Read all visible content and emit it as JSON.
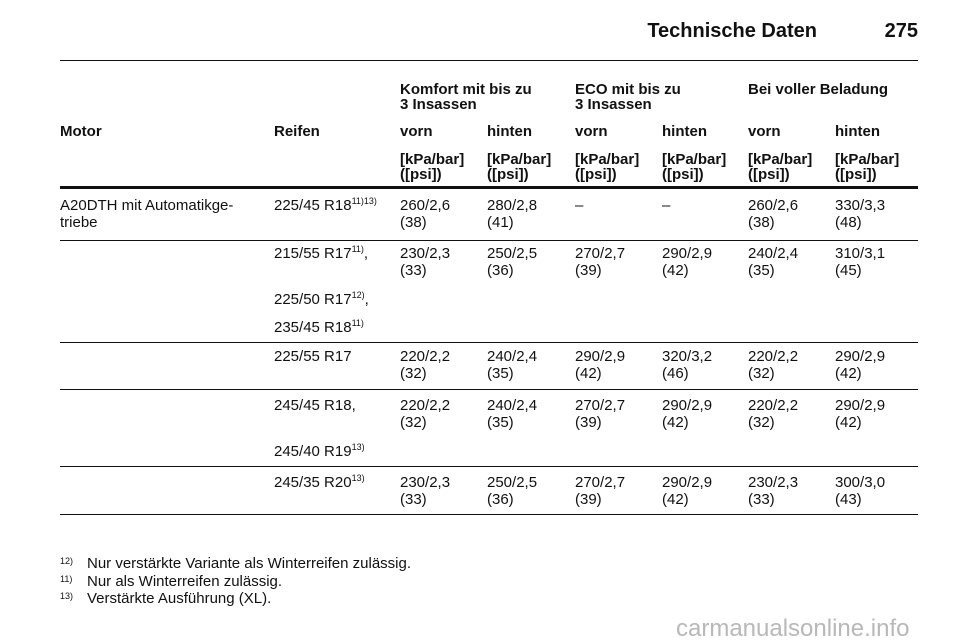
{
  "header": {
    "title": "Technische Daten",
    "page": "275"
  },
  "table": {
    "groups": [
      [
        "Komfort mit bis zu",
        "3 Insassen"
      ],
      [
        "ECO mit bis zu",
        "3 Insassen"
      ],
      [
        "Bei voller Beladung"
      ]
    ],
    "columns": [
      "Motor",
      "Reifen",
      "vorn",
      "hinten",
      "vorn",
      "hinten",
      "vorn",
      "hinten"
    ],
    "units": [
      [
        "[kPa/bar]",
        "([psi])"
      ],
      [
        "[kPa/bar]",
        "([psi])"
      ],
      [
        "[kPa/bar]",
        "([psi])"
      ],
      [
        "[kPa/bar]",
        "([psi])"
      ],
      [
        "[kPa/bar]",
        "([psi])"
      ],
      [
        "[kPa/bar]",
        "([psi])"
      ]
    ],
    "rows": [
      {
        "motor": [
          "A20DTH mit Automatikge-",
          "triebe"
        ],
        "tires": [
          {
            "size": "225/45 R18",
            "note": "11)13)"
          }
        ],
        "values": [
          [
            "260/2,6",
            "(38)"
          ],
          [
            "280/2,8",
            "(41)"
          ],
          [
            "–"
          ],
          [
            "–"
          ],
          [
            "260/2,6",
            "(38)"
          ],
          [
            "330/3,3",
            "(48)"
          ]
        ]
      },
      {
        "tires": [
          {
            "size": "215/55 R17",
            "note": "11)",
            "suffix": ","
          },
          {
            "size": "225/50 R17",
            "note": "12)",
            "suffix": ","
          },
          {
            "size": "235/45 R18",
            "note": "11)"
          }
        ],
        "values": [
          [
            "230/2,3",
            "(33)"
          ],
          [
            "250/2,5",
            "(36)"
          ],
          [
            "270/2,7",
            "(39)"
          ],
          [
            "290/2,9",
            "(42)"
          ],
          [
            "240/2,4",
            "(35)"
          ],
          [
            "310/3,1",
            "(45)"
          ]
        ]
      },
      {
        "tires": [
          {
            "size": "225/55 R17"
          }
        ],
        "values": [
          [
            "220/2,2",
            "(32)"
          ],
          [
            "240/2,4",
            "(35)"
          ],
          [
            "290/2,9",
            "(42)"
          ],
          [
            "320/3,2",
            "(46)"
          ],
          [
            "220/2,2",
            "(32)"
          ],
          [
            "290/2,9",
            "(42)"
          ]
        ]
      },
      {
        "tires": [
          {
            "size": "245/45 R18,"
          },
          {
            "size": "245/40 R19",
            "note": "13)"
          }
        ],
        "values": [
          [
            "220/2,2",
            "(32)"
          ],
          [
            "240/2,4",
            "(35)"
          ],
          [
            "270/2,7",
            "(39)"
          ],
          [
            "290/2,9",
            "(42)"
          ],
          [
            "220/2,2",
            "(32)"
          ],
          [
            "290/2,9",
            "(42)"
          ]
        ]
      },
      {
        "tires": [
          {
            "size": "245/35 R20",
            "note": "13)"
          }
        ],
        "values": [
          [
            "230/2,3",
            "(33)"
          ],
          [
            "250/2,5",
            "(36)"
          ],
          [
            "270/2,7",
            "(39)"
          ],
          [
            "290/2,9",
            "(42)"
          ],
          [
            "230/2,3",
            "(33)"
          ],
          [
            "300/3,0",
            "(43)"
          ]
        ]
      }
    ]
  },
  "footnotes": [
    {
      "mark": "12)",
      "text": "Nur verstärkte Variante als Winterreifen zulässig."
    },
    {
      "mark": "11)",
      "text": "Nur als Winterreifen zulässig."
    },
    {
      "mark": "13)",
      "text": "Verstärkte Ausführung (XL)."
    }
  ],
  "watermark": "carmanualsonline.info"
}
